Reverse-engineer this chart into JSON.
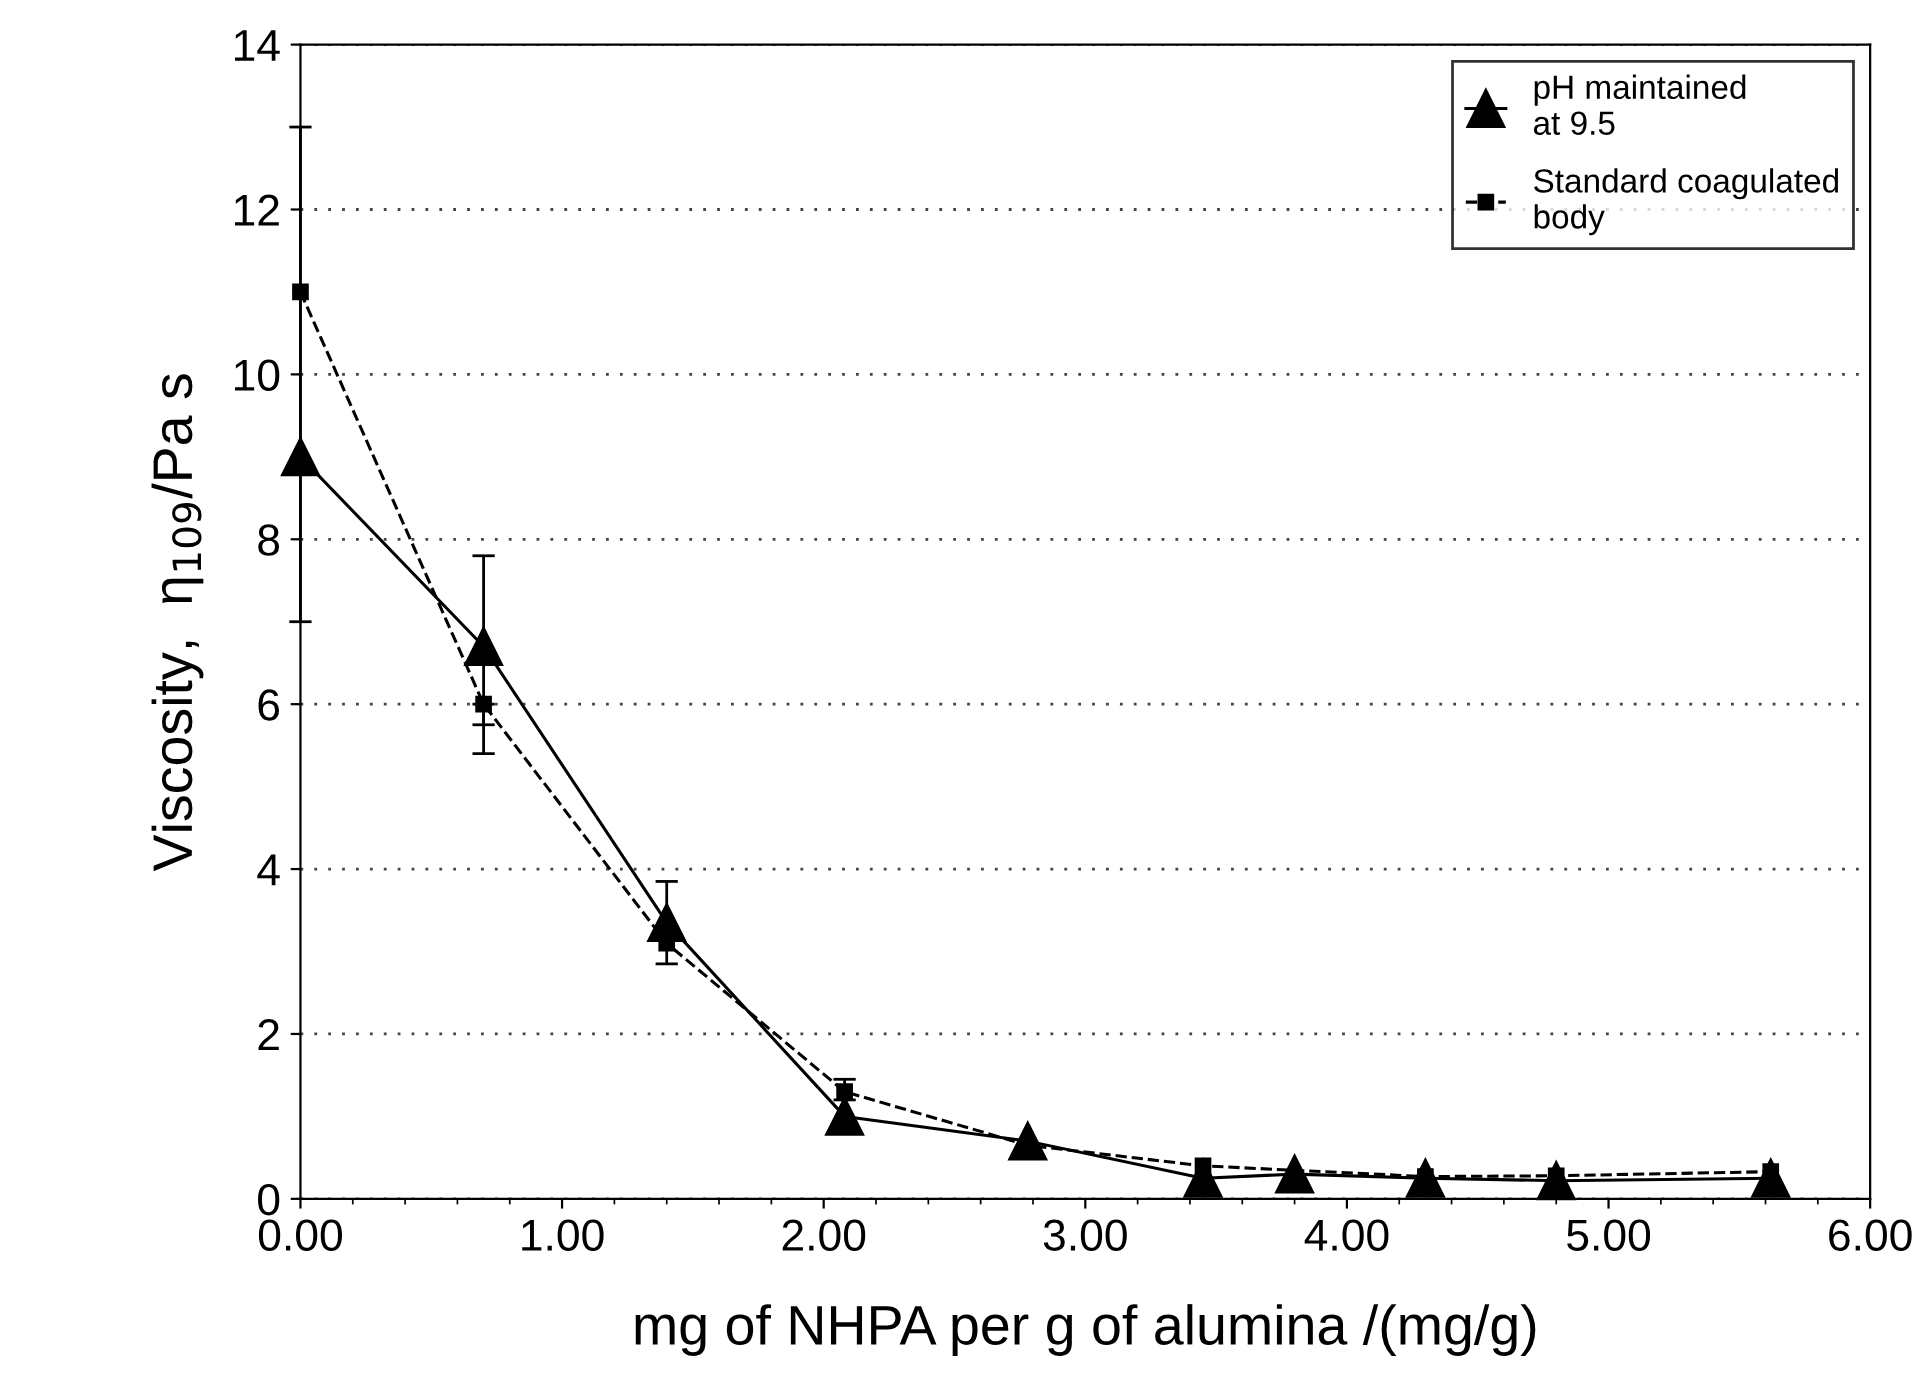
{
  "chart_data": {
    "type": "line",
    "xlabel": "mg of NHPA per g of alumina /(mg/g)",
    "ylabel": "Viscosity,  η$_{109}$/Pa s",
    "x": [
      0,
      0.7,
      1.4,
      2.08,
      2.78,
      3.45,
      3.8,
      4.3,
      4.8,
      5.62
    ],
    "series": [
      {
        "name": "pH maintained\nat 9.5",
        "color": "#000000",
        "marker": "triangle",
        "line_style": "solid",
        "values": [
          9.0,
          6.7,
          3.35,
          1.0,
          0.7,
          0.25,
          0.3,
          0.25,
          0.22,
          0.25
        ],
        "errors": [
          [
            7,
            13
          ],
          [
            5.75,
            7.8
          ],
          [
            2.85,
            3.85
          ],
          null,
          null,
          null,
          null,
          null,
          null,
          null
        ]
      },
      {
        "name": "Standard coagulated\nbody",
        "color": "#000000",
        "marker": "square",
        "line_style": "dashed",
        "values": [
          11.0,
          6.0,
          3.1,
          1.3,
          0.65,
          0.4,
          null,
          0.27,
          0.28,
          0.33
        ],
        "errors": [
          null,
          [
            5.4,
            6.0
          ],
          null,
          [
            1.2,
            1.45
          ],
          null,
          null,
          null,
          null,
          null,
          null
        ]
      }
    ],
    "xlim": [
      0,
      6
    ],
    "xticks": [
      {
        "value": 0,
        "label": "0.00"
      },
      {
        "value": 1,
        "label": "1.00"
      },
      {
        "value": 2,
        "label": "2.00"
      },
      {
        "value": 3,
        "label": "3.00"
      },
      {
        "value": 4,
        "label": "4.00"
      },
      {
        "value": 5,
        "label": "5.00"
      },
      {
        "value": 6,
        "label": "6.00"
      }
    ],
    "ylim": [
      0,
      14
    ],
    "yticks": [
      0,
      2,
      4,
      6,
      8,
      10,
      12,
      14
    ],
    "grid": "y",
    "legend": "top right"
  }
}
